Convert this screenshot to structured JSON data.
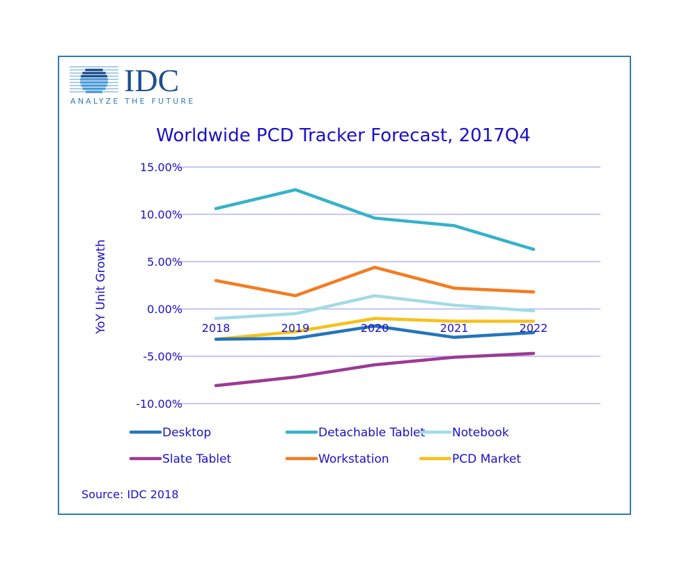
{
  "logo": {
    "text": "IDC",
    "tagline": "ANALYZE THE FUTURE"
  },
  "source": "Source: IDC 2018",
  "chart_data": {
    "type": "line",
    "title": "Worldwide PCD Tracker Forecast, 2017Q4",
    "ylabel": "YoY Unit Growth",
    "xlabel": "",
    "categories": [
      "2018",
      "2019",
      "2020",
      "2021",
      "2022"
    ],
    "ylim": [
      -10,
      15
    ],
    "yticks": [
      "15.00%",
      "10.00%",
      "5.00%",
      "0.00%",
      "-5.00%",
      "-10.00%"
    ],
    "grid": true,
    "legend_position": "bottom",
    "series": [
      {
        "name": "Desktop",
        "color": "#2474bb",
        "values": [
          -3.2,
          -3.1,
          -1.8,
          -3.0,
          -2.5
        ]
      },
      {
        "name": "Detachable Tablet",
        "color": "#35b2c9",
        "values": [
          10.6,
          12.6,
          9.6,
          8.8,
          6.3
        ]
      },
      {
        "name": "Notebook",
        "color": "#a2dbe6",
        "values": [
          -1.0,
          -0.5,
          1.4,
          0.4,
          -0.2
        ]
      },
      {
        "name": "Slate Tablet",
        "color": "#9c3a94",
        "values": [
          -8.1,
          -7.2,
          -5.9,
          -5.1,
          -4.7
        ]
      },
      {
        "name": "Workstation",
        "color": "#f47c20",
        "values": [
          3.0,
          1.4,
          4.4,
          2.2,
          1.8
        ]
      },
      {
        "name": "PCD Market",
        "color": "#f6c11a",
        "values": [
          -3.2,
          -2.4,
          -1.0,
          -1.3,
          -1.3
        ]
      }
    ]
  }
}
